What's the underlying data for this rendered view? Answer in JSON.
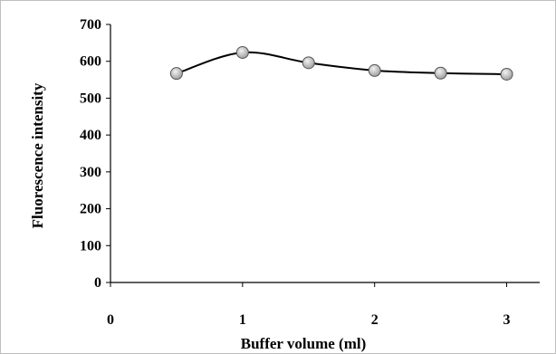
{
  "chart_data": {
    "type": "line",
    "xlabel": "Buffer volume (ml)",
    "ylabel": "Fluorescence intensity",
    "xlim": [
      0,
      3.25
    ],
    "ylim": [
      0,
      700
    ],
    "x_ticks": [
      0,
      1,
      2,
      3
    ],
    "y_ticks": [
      0,
      100,
      200,
      300,
      400,
      500,
      600,
      700
    ],
    "smooth": true,
    "marker": "circle",
    "grid": false,
    "legend": "none",
    "series": [
      {
        "x": [
          0.5,
          1.0,
          1.5,
          2.0,
          2.5,
          3.0
        ],
        "y": [
          567,
          624,
          596,
          575,
          568,
          565
        ]
      }
    ],
    "colors": {
      "line": "#000000",
      "marker_fill": "#c8c8c8",
      "marker_stroke": "#555555",
      "frame": "#bfbfbf"
    }
  }
}
